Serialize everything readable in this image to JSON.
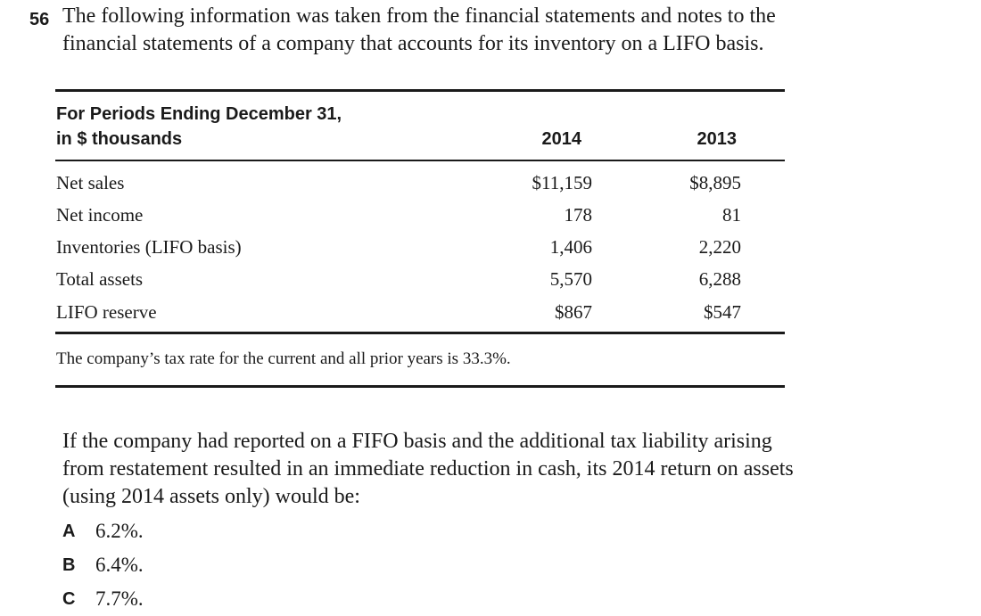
{
  "question": {
    "number": "56",
    "intro": "The following information was taken from the financial statements and notes to the financial statements of a company that accounts for its inventory on a LIFO basis."
  },
  "table": {
    "header_line1": "For Periods Ending December 31,",
    "header_line2": "in $ thousands",
    "col_2014": "2014",
    "col_2013": "2013",
    "rows": [
      {
        "label": "Net sales",
        "v2014": "$11,159",
        "v2013": "$8,895"
      },
      {
        "label": "Net income",
        "v2014": "178",
        "v2013": "81"
      },
      {
        "label": "Inventories (LIFO basis)",
        "v2014": "1,406",
        "v2013": "2,220"
      },
      {
        "label": "Total assets",
        "v2014": "5,570",
        "v2013": "6,288"
      },
      {
        "label": "LIFO reserve",
        "v2014": "$867",
        "v2013": "$547"
      }
    ],
    "note": "The company’s tax rate for the current and all prior years is 33.3%."
  },
  "stem": "If the company had reported on a FIFO basis and the additional tax liability arising from restatement resulted in an immediate reduction in cash, its 2014 return on assets (using 2014 assets only) would be:",
  "options": [
    {
      "letter": "A",
      "text": "6.2%."
    },
    {
      "letter": "B",
      "text": "6.4%."
    },
    {
      "letter": "C",
      "text": "7.7%."
    }
  ]
}
